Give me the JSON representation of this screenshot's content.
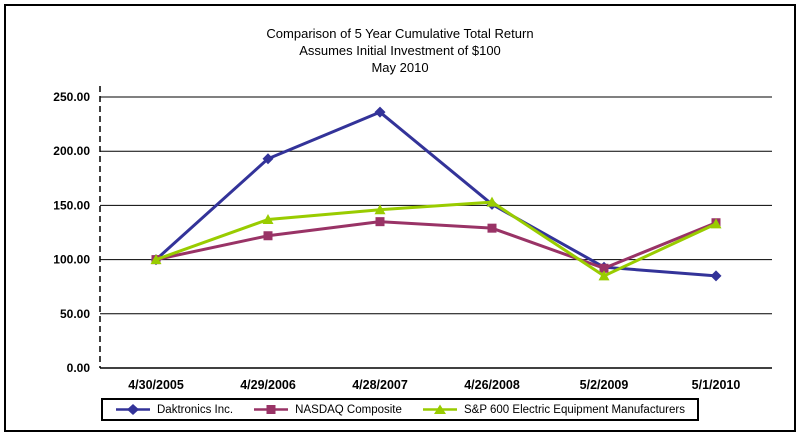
{
  "chart": {
    "title": "Comparison of 5 Year Cumulative Total Return",
    "subtitle1": "Assumes Initial Investment of $100",
    "subtitle2": "May 2010"
  },
  "chart_data": {
    "type": "line",
    "categories": [
      "4/30/2005",
      "4/29/2006",
      "4/28/2007",
      "4/26/2008",
      "5/2/2009",
      "5/1/2010"
    ],
    "series": [
      {
        "name": "Daktronics Inc.",
        "color": "#333399",
        "marker": "diamond",
        "values": [
          100,
          193,
          236,
          151,
          93,
          85
        ]
      },
      {
        "name": "NASDAQ Composite",
        "color": "#993366",
        "marker": "square",
        "values": [
          100,
          122,
          135,
          129,
          92,
          134
        ]
      },
      {
        "name": "S&P 600 Electric Equipment Manufacturers",
        "color": "#99CC00",
        "marker": "triangle",
        "values": [
          100,
          137,
          146,
          153,
          85,
          133
        ]
      }
    ],
    "ylim": [
      0,
      250
    ],
    "ytick_step": 50,
    "ytick_labels": [
      "0.00",
      "50.00",
      "100.00",
      "150.00",
      "200.00",
      "250.00"
    ],
    "grid": "horizontal",
    "legend_position": "bottom"
  }
}
